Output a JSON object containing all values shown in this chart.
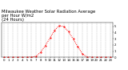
{
  "title": "Milwaukee Weather Solar Radiation Average\nper Hour W/m2\n(24 Hours)",
  "hours": [
    0,
    1,
    2,
    3,
    4,
    5,
    6,
    7,
    8,
    9,
    10,
    11,
    12,
    13,
    14,
    15,
    16,
    17,
    18,
    19,
    20,
    21,
    22,
    23
  ],
  "values": [
    0,
    0,
    0,
    0,
    0,
    2,
    5,
    18,
    85,
    190,
    310,
    435,
    510,
    490,
    410,
    295,
    170,
    55,
    6,
    1,
    0,
    0,
    0,
    0
  ],
  "line_color": "#ff0000",
  "background_color": "#ffffff",
  "grid_color": "#999999",
  "ytick_values": [
    0,
    100,
    200,
    300,
    400,
    500
  ],
  "ytick_labels": [
    "0",
    "1",
    "2",
    "3",
    "4",
    "5"
  ],
  "ylim": [
    0,
    560
  ],
  "xlim": [
    -0.5,
    23.5
  ],
  "title_fontsize": 3.8,
  "tick_fontsize": 2.8,
  "figwidth": 1.6,
  "figheight": 0.87,
  "dpi": 100
}
